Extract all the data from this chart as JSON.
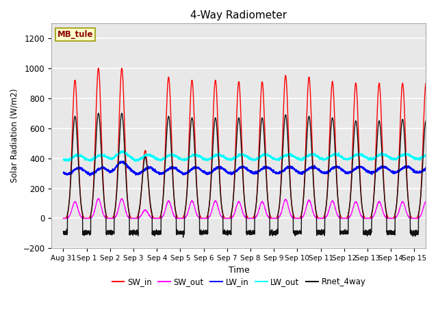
{
  "title": "4-Way Radiometer",
  "xlabel": "Time",
  "ylabel": "Solar Radiation (W/m2)",
  "ylim": [
    -200,
    1300
  ],
  "yticks": [
    -200,
    0,
    200,
    400,
    600,
    800,
    1000,
    1200
  ],
  "xlim_start": -0.5,
  "xlim_end": 15.5,
  "xtick_labels": [
    "Aug 31",
    "Sep 1",
    "Sep 2",
    "Sep 3",
    "Sep 4",
    "Sep 5",
    "Sep 6",
    "Sep 7",
    "Sep 8",
    "Sep 9",
    "Sep 10",
    "Sep 11",
    "Sep 12",
    "Sep 13",
    "Sep 14",
    "Sep 15"
  ],
  "station_label": "MB_tule",
  "legend_entries": [
    "SW_in",
    "SW_out",
    "LW_in",
    "LW_out",
    "Rnet_4way"
  ],
  "line_colors": [
    "red",
    "magenta",
    "blue",
    "cyan",
    "#111111"
  ],
  "background_color": "#e8e8e8",
  "grid_color": "white",
  "title_fontsize": 11,
  "sw_in_peaks": [
    920,
    1000,
    1000,
    450,
    940,
    920,
    920,
    910,
    910,
    950,
    940,
    910,
    900,
    900,
    900,
    900
  ],
  "sw_out_peaks": [
    110,
    130,
    130,
    55,
    115,
    115,
    115,
    110,
    110,
    125,
    120,
    115,
    110,
    110,
    110,
    110
  ],
  "rnet_peaks": [
    680,
    700,
    700,
    410,
    680,
    670,
    670,
    670,
    670,
    690,
    680,
    670,
    650,
    650,
    660,
    650
  ],
  "lw_in_base": 315,
  "lw_in_trend": 10,
  "lw_in_amp": 20,
  "lw_out_base": 400,
  "lw_out_trend": 8,
  "lw_out_amp": 15,
  "night_rnet": -95,
  "night_lw_diff": -15,
  "n_days": 16,
  "pts_per_day": 288
}
